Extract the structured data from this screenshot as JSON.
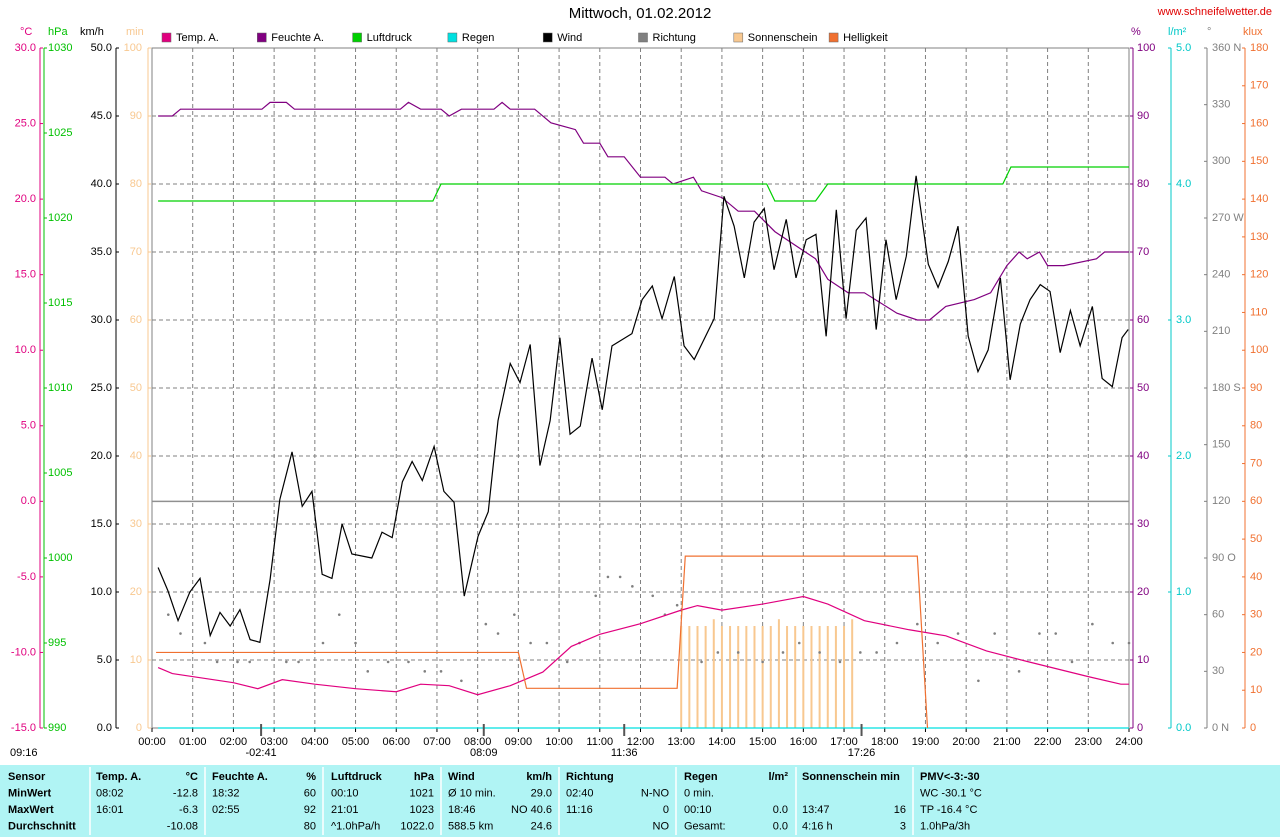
{
  "chart_data": {
    "type": "line",
    "title": "Mittwoch, 01.02.2012",
    "source": "www.schneifelwetter.de",
    "grid": true,
    "corner_text": "09:16",
    "xlim": [
      0,
      24
    ],
    "xticks": [
      {
        "value": 0,
        "label": "00:00"
      },
      {
        "value": 1,
        "label": "01:00"
      },
      {
        "value": 2,
        "label": "02:00"
      },
      {
        "value": 3,
        "label": "03:00"
      },
      {
        "value": 4,
        "label": "04:00"
      },
      {
        "value": 5,
        "label": "05:00"
      },
      {
        "value": 6,
        "label": "06:00"
      },
      {
        "value": 7,
        "label": "07:00"
      },
      {
        "value": 8,
        "label": "08:00"
      },
      {
        "value": 9,
        "label": "09:00"
      },
      {
        "value": 10,
        "label": "10:00"
      },
      {
        "value": 11,
        "label": "11:00"
      },
      {
        "value": 12,
        "label": "12:00"
      },
      {
        "value": 13,
        "label": "13:00"
      },
      {
        "value": 14,
        "label": "14:00"
      },
      {
        "value": 15,
        "label": "15:00"
      },
      {
        "value": 16,
        "label": "16:00"
      },
      {
        "value": 17,
        "label": "17:00"
      },
      {
        "value": 18,
        "label": "18:00"
      },
      {
        "value": 19,
        "label": "19:00"
      },
      {
        "value": 20,
        "label": "20:00"
      },
      {
        "value": 21,
        "label": "21:00"
      },
      {
        "value": 22,
        "label": "22:00"
      },
      {
        "value": 23,
        "label": "23:00"
      },
      {
        "value": 24,
        "label": "24:00"
      }
    ],
    "axes": [
      {
        "unit": "°C",
        "color": "#e0007f",
        "lim": [
          -15,
          30
        ],
        "ticks": [
          {
            "value": -15,
            "label": "-15.0"
          },
          {
            "value": -10,
            "label": "-10.0"
          },
          {
            "value": -5,
            "label": "-5.0"
          },
          {
            "value": 0,
            "label": "0.0"
          },
          {
            "value": 5,
            "label": "5.0"
          },
          {
            "value": 10,
            "label": "10.0"
          },
          {
            "value": 15,
            "label": "15.0"
          },
          {
            "value": 20,
            "label": "20.0"
          },
          {
            "value": 25,
            "label": "25.0"
          },
          {
            "value": 30,
            "label": "30.0"
          }
        ]
      },
      {
        "unit": "hPa",
        "color": "#00c000",
        "lim": [
          990,
          1030
        ],
        "ticks": [
          990,
          995,
          1000,
          1005,
          1010,
          1015,
          1020,
          1025,
          1030
        ]
      },
      {
        "unit": "km/h",
        "color": "#000000",
        "lim": [
          0,
          50
        ],
        "ticks": [
          {
            "value": 0,
            "label": "0.0"
          },
          {
            "value": 5,
            "label": "5.0"
          },
          {
            "value": 10,
            "label": "10.0"
          },
          {
            "value": 15,
            "label": "15.0"
          },
          {
            "value": 20,
            "label": "20.0"
          },
          {
            "value": 25,
            "label": "25.0"
          },
          {
            "value": 30,
            "label": "30.0"
          },
          {
            "value": 35,
            "label": "35.0"
          },
          {
            "value": 40,
            "label": "40.0"
          },
          {
            "value": 45,
            "label": "45.0"
          },
          {
            "value": 50,
            "label": "50.0"
          }
        ]
      },
      {
        "unit": "min",
        "color": "#f8c890",
        "lim": [
          0,
          100
        ],
        "ticks": [
          0,
          10,
          20,
          30,
          40,
          50,
          60,
          70,
          80,
          90,
          100
        ]
      },
      {
        "unit": "%",
        "color": "#800080",
        "lim": [
          0,
          100
        ],
        "ticks": [
          0,
          10,
          20,
          30,
          40,
          50,
          60,
          70,
          80,
          90,
          100
        ]
      },
      {
        "unit": "l/m²",
        "color": "#00c8c8",
        "lim": [
          0,
          5
        ],
        "ticks": [
          {
            "value": 0,
            "label": "0.0"
          },
          {
            "value": 1,
            "label": "1.0"
          },
          {
            "value": 2,
            "label": "2.0"
          },
          {
            "value": 3,
            "label": "3.0"
          },
          {
            "value": 4,
            "label": "4.0"
          },
          {
            "value": 5,
            "label": "5.0"
          }
        ]
      },
      {
        "unit": "°",
        "color": "#808080",
        "lim": [
          0,
          360
        ],
        "ticks": [
          {
            "value": 0,
            "label": "0 N"
          },
          30,
          60,
          {
            "value": 90,
            "label": "90 O"
          },
          120,
          150,
          {
            "value": 180,
            "label": "180 S"
          },
          210,
          240,
          {
            "value": 270,
            "label": "270 W"
          },
          300,
          330,
          {
            "value": 360,
            "label": "360 N"
          }
        ]
      },
      {
        "unit": "klux",
        "color": "#f07030",
        "lim": [
          0,
          180
        ],
        "ticks": [
          0,
          10,
          20,
          30,
          40,
          50,
          60,
          70,
          80,
          90,
          100,
          110,
          120,
          130,
          140,
          150,
          160,
          170,
          180
        ]
      }
    ],
    "series": [
      {
        "name": "Temp. A.",
        "color": "#e0007f",
        "type": "line",
        "axis": "°C",
        "x": [
          0.15,
          0.5,
          2,
          2.6,
          3.2,
          4,
          5,
          6,
          6.6,
          7.3,
          8,
          8.8,
          9.6,
          10.3,
          11,
          12,
          13,
          13.4,
          14,
          15,
          15.8,
          16,
          16.6,
          17.5,
          18.6,
          19.5,
          20.5,
          21.5,
          23,
          23.8,
          24
        ],
        "values": [
          -11,
          -11.4,
          -12,
          -12.4,
          -11.8,
          -12.1,
          -12.4,
          -12.6,
          -12.1,
          -12.2,
          -12.8,
          -12.2,
          -11.3,
          -9.6,
          -8.8,
          -8.1,
          -7.2,
          -6.9,
          -7.2,
          -6.8,
          -6.4,
          -6.3,
          -6.8,
          -7.9,
          -8.5,
          -8.9,
          -9.9,
          -10.6,
          -11.6,
          -12.1,
          -12.1
        ]
      },
      {
        "name": "Feuchte A.",
        "color": "#800080",
        "type": "line",
        "axis": "%",
        "x": [
          0.15,
          0.5,
          0.7,
          2.7,
          2.9,
          3.3,
          3.5,
          6.1,
          6.3,
          6.6,
          7.1,
          7.3,
          7.6,
          8.4,
          8.6,
          8.8,
          9.4,
          9.8,
          10.4,
          10.6,
          11,
          11.2,
          11.6,
          12,
          12.6,
          12.8,
          13.3,
          13.5,
          14,
          14.4,
          14.8,
          15.3,
          15.8,
          16.3,
          16.6,
          17.1,
          17.5,
          18.3,
          18.8,
          19.1,
          19.5,
          20.2,
          20.6,
          21,
          21.3,
          21.5,
          21.8,
          22,
          22.4,
          23.2,
          23.4,
          24
        ],
        "values": [
          90,
          90,
          91,
          91,
          92,
          92,
          91,
          91,
          92,
          91,
          91,
          90,
          91,
          91,
          92,
          91,
          91,
          89,
          88,
          86,
          86,
          84,
          84,
          81,
          81,
          80,
          81,
          79,
          78,
          76,
          76,
          73,
          71,
          69,
          66,
          64,
          64,
          61,
          60,
          60,
          62,
          63,
          64,
          68,
          70,
          69,
          70,
          68,
          68,
          69,
          70,
          70
        ]
      },
      {
        "name": "Luftdruck",
        "color": "#00d000",
        "type": "line",
        "axis": "hPa",
        "x": [
          0.15,
          6.9,
          7.1,
          15.1,
          15.3,
          16.3,
          16.6,
          20.9,
          21.1,
          24
        ],
        "values": [
          1021,
          1021,
          1022,
          1022,
          1021,
          1021,
          1022,
          1022,
          1023,
          1023
        ]
      },
      {
        "name": "Regen",
        "color": "#00e0e0",
        "type": "line",
        "axis": "l/m²",
        "x": [
          0.15,
          24
        ],
        "values": [
          0,
          0
        ]
      },
      {
        "name": "Wind",
        "color": "#000000",
        "type": "line",
        "axis": "km/h",
        "x": [
          0.15,
          0.39,
          0.64,
          0.93,
          1.18,
          1.43,
          1.67,
          1.92,
          2.16,
          2.41,
          2.65,
          2.9,
          3.14,
          3.44,
          3.69,
          3.93,
          4.18,
          4.42,
          4.67,
          4.91,
          5.4,
          5.65,
          5.9,
          6.15,
          6.39,
          6.64,
          6.93,
          7.17,
          7.42,
          7.67,
          8.01,
          8.26,
          8.5,
          8.8,
          9.04,
          9.29,
          9.53,
          9.78,
          10.02,
          10.27,
          10.52,
          10.81,
          11.06,
          11.3,
          11.79,
          12.04,
          12.29,
          12.53,
          12.83,
          13.07,
          13.32,
          13.81,
          14.05,
          14.3,
          14.55,
          14.79,
          15.04,
          15.28,
          15.58,
          15.82,
          16.07,
          16.31,
          16.56,
          16.81,
          17.05,
          17.3,
          17.54,
          17.79,
          18.03,
          18.28,
          18.53,
          18.77,
          19.07,
          19.31,
          19.56,
          19.8,
          20.05,
          20.29,
          20.54,
          20.84,
          21.08,
          21.33,
          21.57,
          21.82,
          22.06,
          22.31,
          22.56,
          22.8,
          23.1,
          23.34,
          23.59,
          23.83,
          23.98
        ],
        "values": [
          11.8,
          10.1,
          7.9,
          10,
          11,
          6.8,
          8.5,
          7.5,
          8.7,
          6.5,
          6.3,
          10.9,
          16.8,
          20.3,
          16.3,
          17.4,
          11.3,
          11,
          15,
          12.8,
          12.5,
          14.4,
          14,
          18.1,
          19.6,
          18.2,
          20.7,
          17.4,
          16.6,
          9.7,
          14.1,
          15.9,
          22.6,
          26.8,
          25.4,
          28.2,
          19.3,
          22.6,
          28.7,
          21.6,
          22.2,
          27.2,
          23.4,
          28.1,
          29,
          31.5,
          32.5,
          30.1,
          33.2,
          28.1,
          27.1,
          30.1,
          39.1,
          36.9,
          33.1,
          37.2,
          38.2,
          33.7,
          37.4,
          33.1,
          35.9,
          36.3,
          28.8,
          38.1,
          30.1,
          36.6,
          37.5,
          29.3,
          35.9,
          31.5,
          34.7,
          40.6,
          34.1,
          32.4,
          34.3,
          36.9,
          28.8,
          26.2,
          27.8,
          33.1,
          25.6,
          29.7,
          31.5,
          32.6,
          32.1,
          27.6,
          30.7,
          28.1,
          31,
          25.7,
          25.1,
          28.7,
          29.3
        ]
      },
      {
        "name": "Richtung",
        "color": "#808080",
        "type": "scatter",
        "axis": "°",
        "x": [
          0.4,
          0.7,
          1.3,
          1.6,
          2.1,
          2.4,
          3.3,
          3.6,
          4.2,
          4.6,
          5,
          5.3,
          5.8,
          6.3,
          6.7,
          7.1,
          7.6,
          8.2,
          8.5,
          8.9,
          9.3,
          9.7,
          10.2,
          10.5,
          10.9,
          11.2,
          11.5,
          11.8,
          12.3,
          12.6,
          12.9,
          13.5,
          13.9,
          14.4,
          15,
          15.5,
          15.9,
          16.4,
          16.9,
          17.4,
          17.8,
          18.3,
          18.8,
          19.3,
          19.8,
          20.3,
          20.7,
          21.3,
          21.8,
          22.2,
          22.6,
          23.1,
          23.6,
          24
        ],
        "values": [
          60,
          50,
          45,
          35,
          35,
          35,
          35,
          35,
          45,
          60,
          45,
          30,
          35,
          35,
          30,
          30,
          25,
          55,
          50,
          60,
          45,
          45,
          35,
          45,
          70,
          80,
          80,
          75,
          70,
          60,
          65,
          35,
          40,
          40,
          35,
          40,
          45,
          40,
          35,
          40,
          40,
          45,
          55,
          45,
          50,
          25,
          50,
          30,
          50,
          50,
          35,
          55,
          45,
          45
        ]
      },
      {
        "name": "Sonnenschein",
        "color": "#f8c890",
        "type": "bar",
        "axis": "min",
        "x": [
          13,
          13.2,
          13.4,
          13.6,
          13.8,
          14,
          14.2,
          14.4,
          14.6,
          14.8,
          15,
          15.2,
          15.4,
          15.6,
          15.8,
          16,
          16.2,
          16.4,
          16.6,
          16.8,
          17,
          17.2
        ],
        "values": [
          15,
          15,
          15,
          15,
          16,
          15,
          15,
          15,
          15,
          15,
          15,
          15,
          16,
          15,
          15,
          15,
          15,
          15,
          15,
          15,
          15,
          16
        ]
      },
      {
        "name": "Helligkeit",
        "color": "#f07030",
        "type": "line",
        "axis": "klux",
        "x": [
          0.1,
          9,
          9.2,
          12.9,
          13.1,
          18.8,
          19.05
        ],
        "values": [
          20,
          20,
          10.5,
          10.5,
          45.5,
          45.5,
          0
        ]
      }
    ],
    "annotations": [
      {
        "text": "-02:41",
        "x": 2.68
      },
      {
        "text": "08:09",
        "x": 8.15
      },
      {
        "text": "11:36",
        "x": 11.6
      },
      {
        "text": "17:26",
        "x": 17.43
      }
    ]
  },
  "table": {
    "rows": [
      [
        "Sensor",
        "Temp. A.",
        "°C",
        "Feuchte A.",
        "%",
        "Luftdruck",
        "hPa",
        "Wind",
        "km/h",
        "Richtung",
        null,
        "Regen",
        "l/m²",
        "Sonnenschein min",
        null,
        "PMV<-3:-30"
      ],
      [
        "MinWert",
        "08:02",
        "-12.8",
        "18:32",
        "60",
        "00:10",
        "1021",
        "Ø 10 min.",
        "29.0",
        "02:40",
        "N-NO",
        "0 min.",
        null,
        null,
        null,
        "WC -30.1 °C"
      ],
      [
        "MaxWert",
        "16:01",
        "-6.3",
        "02:55",
        "92",
        "21:01",
        "1023",
        "18:46",
        "NO 40.6",
        "11:16",
        "0",
        "00:10",
        "0.0",
        "13:47",
        "16",
        "TP -16.4 °C"
      ],
      [
        "Durchschnitt",
        null,
        "-10.08",
        null,
        "80",
        "^1.0hPa/h",
        "1022.0",
        "588.5 km",
        "24.6",
        null,
        "NO",
        "Gesamt:",
        "0.0",
        "4:16 h",
        "3",
        "1.0hPa/3h"
      ]
    ]
  }
}
